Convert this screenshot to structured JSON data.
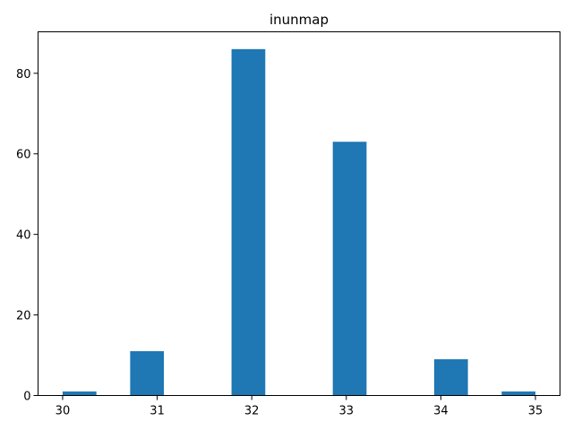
{
  "chart_data": {
    "type": "bar",
    "title": "inunmap",
    "xlabel": "",
    "ylabel": "",
    "xlim": [
      29.74,
      35.26
    ],
    "ylim": [
      0,
      90.3
    ],
    "x_ticks": [
      30,
      31,
      32,
      33,
      34,
      35
    ],
    "y_ticks": [
      0,
      20,
      40,
      60,
      80
    ],
    "bar_width": 0.357,
    "bins": [
      {
        "x0": 30.0,
        "value": 1
      },
      {
        "x0": 30.714,
        "value": 11
      },
      {
        "x0": 31.786,
        "value": 86
      },
      {
        "x0": 32.857,
        "value": 63
      },
      {
        "x0": 33.929,
        "value": 9
      },
      {
        "x0": 34.643,
        "value": 1
      }
    ],
    "grid": false,
    "colors": {
      "bar": "#1f77b4",
      "axis": "#000000"
    }
  }
}
